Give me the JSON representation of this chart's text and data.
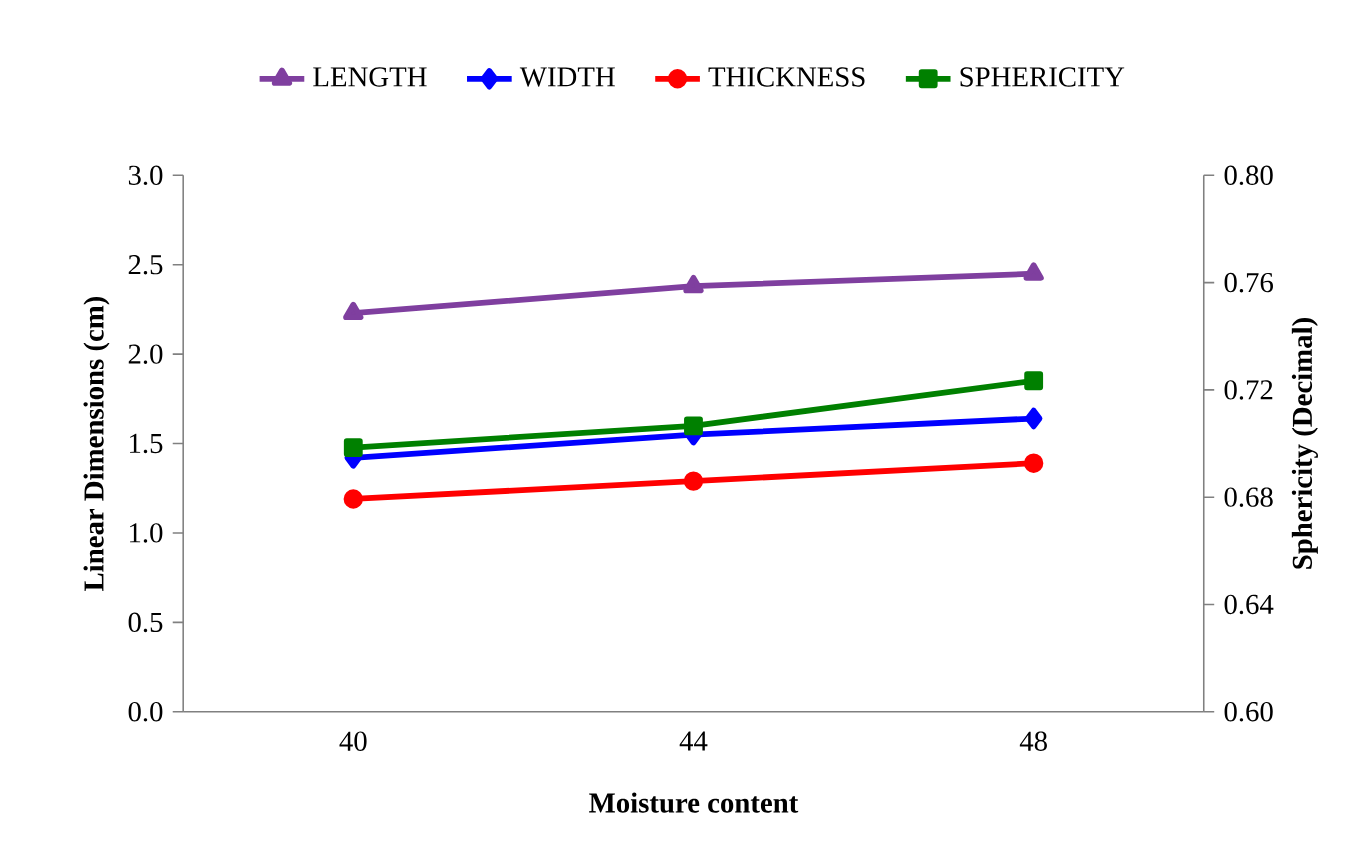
{
  "chart_data": {
    "type": "line",
    "categories": [
      "40",
      "44",
      "48"
    ],
    "xlabel": "Moisture content",
    "ylabel": "Linear Dimensions (cm)",
    "y2label": "Sphericity (Decimal)",
    "ylim": [
      0,
      3
    ],
    "yticks": [
      {
        "value": 0,
        "label": "0.0"
      },
      0.5,
      {
        "value": 1,
        "label": "1.0"
      },
      1.5,
      {
        "value": 2,
        "label": "2.0"
      },
      2.5,
      {
        "value": 3,
        "label": "3.0"
      }
    ],
    "y2lim": [
      0.6,
      0.8
    ],
    "y2ticks": [
      {
        "value": 0.6,
        "label": "0.60"
      },
      0.64,
      0.68,
      0.72,
      0.76,
      {
        "value": 0.8,
        "label": "0.80"
      }
    ],
    "legend": "top",
    "grid": false,
    "line_style": "solid",
    "series": [
      {
        "name": "LENGTH",
        "color": "#7f3f9f",
        "marker": "triangle",
        "values": [
          2.23,
          2.38,
          2.45
        ]
      },
      {
        "name": "WIDTH",
        "color": "#0000ff",
        "marker": "diamond",
        "values": [
          1.42,
          1.55,
          1.64
        ]
      },
      {
        "name": "THICKNESS",
        "color": "#ff0000",
        "marker": "circle",
        "values": [
          1.19,
          1.29,
          1.39
        ]
      },
      {
        "name": "SPHERICITY",
        "color": "#008000",
        "marker": "square",
        "axis": "y2",
        "values": [
          0.6985,
          0.7066,
          0.7234
        ]
      }
    ]
  }
}
